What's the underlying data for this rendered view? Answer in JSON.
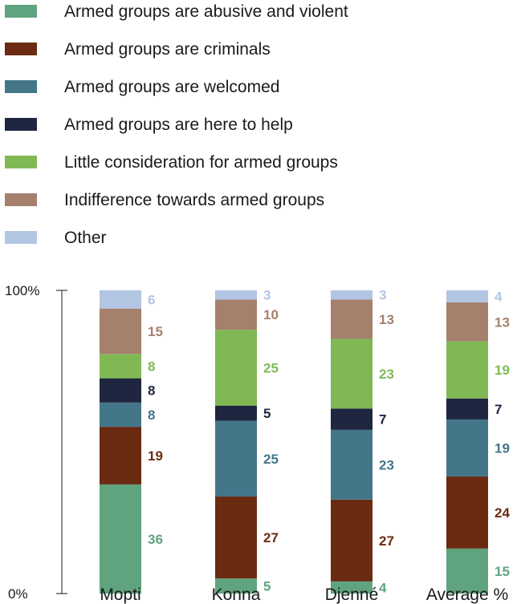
{
  "chart_data": {
    "type": "bar",
    "stacked": true,
    "title": "",
    "xlabel": "",
    "ylabel": "",
    "ylim": [
      0,
      100
    ],
    "y_ticks": [
      "0%",
      "100%"
    ],
    "categories": [
      "Mopti",
      "Konna",
      "Djenné",
      "Average %"
    ],
    "legend_position": "top",
    "series": [
      {
        "name": "Armed groups are abusive and violent",
        "color": "#5fa47e",
        "values": [
          36,
          5,
          4,
          15
        ]
      },
      {
        "name": "Armed groups are criminals",
        "color": "#6b2a12",
        "values": [
          19,
          27,
          27,
          24
        ]
      },
      {
        "name": "Armed groups are welcomed",
        "color": "#44768a",
        "values": [
          8,
          25,
          23,
          19
        ]
      },
      {
        "name": "Armed groups are here to help",
        "color": "#1e2640",
        "values": [
          8,
          5,
          7,
          7
        ]
      },
      {
        "name": "Little consideration for armed groups",
        "color": "#80b954",
        "values": [
          8,
          25,
          23,
          19
        ]
      },
      {
        "name": "Indifference towards armed groups",
        "color": "#a5806d",
        "values": [
          15,
          10,
          13,
          13
        ]
      },
      {
        "name": "Other",
        "color": "#b2c5e3",
        "values": [
          6,
          3,
          3,
          4
        ]
      }
    ]
  }
}
